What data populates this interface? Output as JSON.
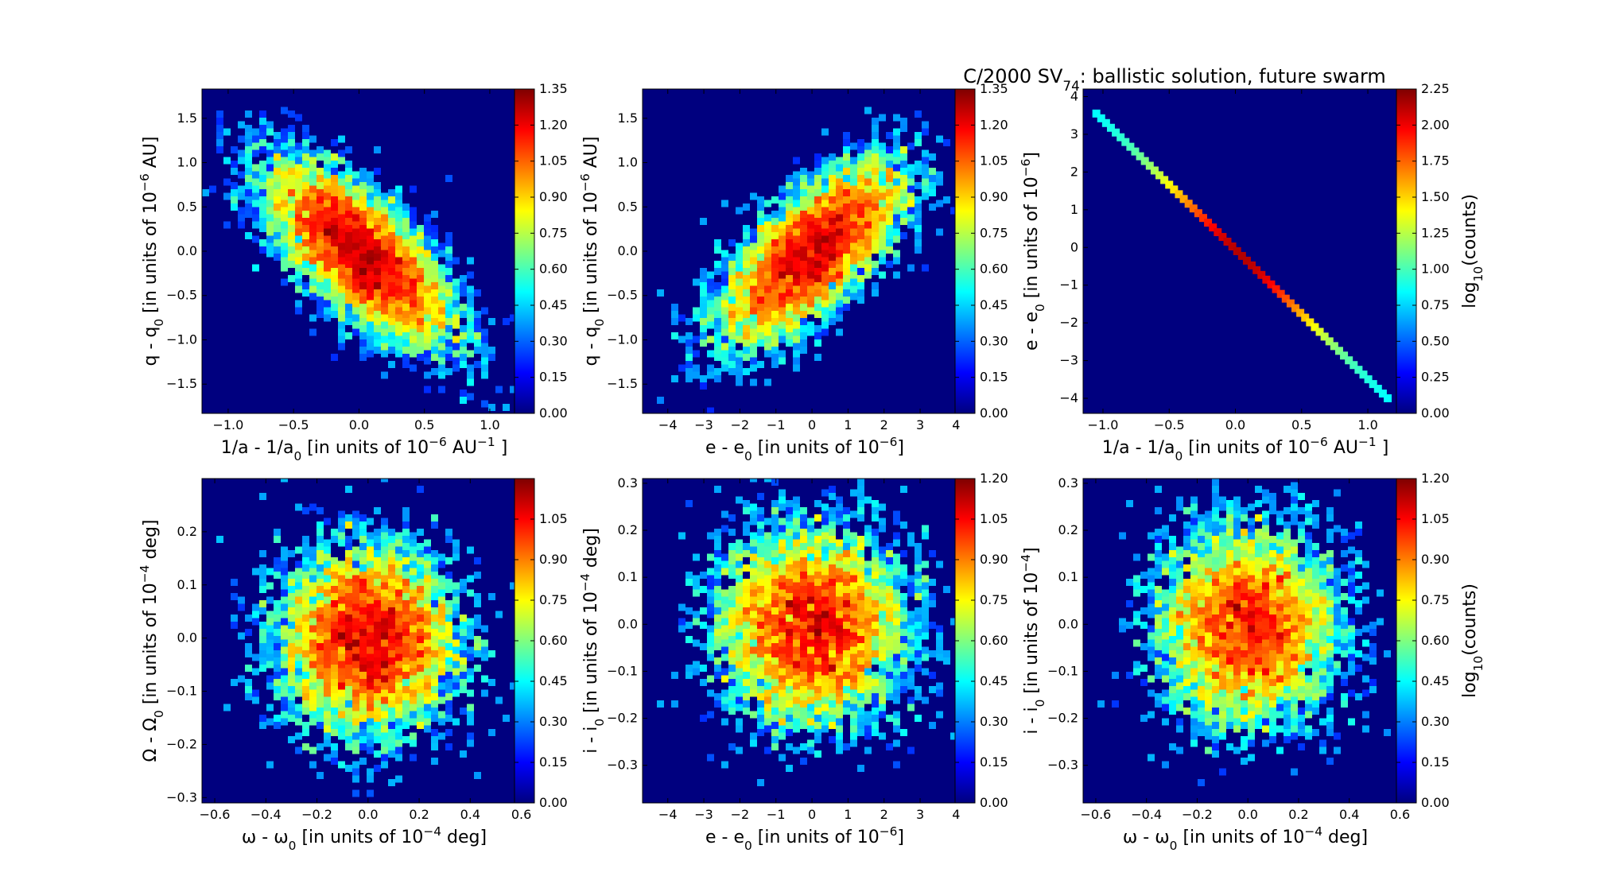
{
  "figure": {
    "title": "C/2000 SV",
    "title_sub": "74",
    "title_rest": ":  ballistic solution, future swarm"
  },
  "colormap": [
    "#00007f",
    "#0000ff",
    "#007fff",
    "#00ffff",
    "#7fff7f",
    "#ffff00",
    "#ff7f00",
    "#ff0000",
    "#7f0000"
  ],
  "chart_data": [
    {
      "type": "heatmap",
      "id": "p1",
      "kind": "ellipse",
      "xlim": [
        -1.2,
        1.28
      ],
      "ylim": [
        -1.83,
        1.83
      ],
      "xticks": [
        -1.0,
        -0.5,
        0.0,
        0.5,
        1.0
      ],
      "yticks": [
        -1.5,
        -1.0,
        -0.5,
        0.0,
        0.5,
        1.0,
        1.5
      ],
      "xlabel": [
        {
          "t": "1/a - 1/a"
        },
        {
          "t": "0",
          "s": "sub"
        },
        {
          "t": " [in units of 10"
        },
        {
          "t": "−6",
          "s": "sup"
        },
        {
          "t": " AU"
        },
        {
          "t": "−1",
          "s": "sup"
        },
        {
          "t": " ]"
        }
      ],
      "ylabel": [
        {
          "t": "q - q"
        },
        {
          "t": "0",
          "s": "sub"
        },
        {
          "t": " [in units of 10"
        },
        {
          "t": "−6",
          "s": "sup"
        },
        {
          "t": " AU]"
        }
      ],
      "sx": 0.35,
      "sy": 0.5,
      "rho": -0.7,
      "colorbar": {
        "range": [
          0,
          1.35
        ],
        "ticks": [
          "0.00",
          "0.15",
          "0.30",
          "0.45",
          "0.60",
          "0.75",
          "0.90",
          "1.05",
          "1.20",
          "1.35"
        ],
        "label": []
      }
    },
    {
      "type": "heatmap",
      "id": "p2",
      "kind": "ellipse",
      "xlim": [
        -4.7,
        4.3
      ],
      "ylim": [
        -1.83,
        1.83
      ],
      "xticks": [
        -4,
        -3,
        -2,
        -1,
        0,
        1,
        2,
        3,
        4
      ],
      "yticks": [
        -1.5,
        -1.0,
        -0.5,
        0.0,
        0.5,
        1.0,
        1.5
      ],
      "xlabel": [
        {
          "t": "e - e"
        },
        {
          "t": "0",
          "s": "sub"
        },
        {
          "t": " [in units of 10"
        },
        {
          "t": "−6",
          "s": "sup"
        },
        {
          "t": "]"
        }
      ],
      "ylabel": [
        {
          "t": "q - q"
        },
        {
          "t": "0",
          "s": "sub"
        },
        {
          "t": " [in units of 10"
        },
        {
          "t": "−6",
          "s": "sup"
        },
        {
          "t": " AU]"
        }
      ],
      "sx": 1.25,
      "sy": 0.5,
      "rho": 0.7,
      "colorbar": {
        "range": [
          0,
          1.35
        ],
        "ticks": [
          "0.00",
          "0.15",
          "0.30",
          "0.45",
          "0.60",
          "0.75",
          "0.90",
          "1.05",
          "1.20",
          "1.35"
        ],
        "label": []
      }
    },
    {
      "type": "heatmap",
      "id": "p3",
      "kind": "line",
      "xlim": [
        -1.15,
        1.3
      ],
      "ylim": [
        -4.4,
        4.2
      ],
      "xticks": [
        -1.0,
        -0.5,
        0.0,
        0.5,
        1.0
      ],
      "yticks": [
        -4,
        -3,
        -2,
        -1,
        0,
        1,
        2,
        3,
        4
      ],
      "xlabel": [
        {
          "t": "1/a - 1/a"
        },
        {
          "t": "0",
          "s": "sub"
        },
        {
          "t": " [in units of 10"
        },
        {
          "t": "−6",
          "s": "sup"
        },
        {
          "t": " AU"
        },
        {
          "t": "−1",
          "s": "sup"
        },
        {
          "t": " ]"
        }
      ],
      "ylabel": [
        {
          "t": "e - e"
        },
        {
          "t": "0",
          "s": "sub"
        },
        {
          "t": " [in units of 10"
        },
        {
          "t": "−6",
          "s": "sup"
        },
        {
          "t": "]"
        }
      ],
      "line": {
        "x0": -1.05,
        "y0": 3.55,
        "x1": 1.15,
        "y1": -4.0
      },
      "colorbar": {
        "range": [
          0,
          2.25
        ],
        "ticks": [
          "0.00",
          "0.25",
          "0.50",
          "0.75",
          "1.00",
          "1.25",
          "1.50",
          "1.75",
          "2.00",
          "2.25"
        ],
        "label": [
          {
            "t": "log"
          },
          {
            "t": "10",
            "s": "sub"
          },
          {
            "t": "(counts)"
          }
        ]
      }
    },
    {
      "type": "heatmap",
      "id": "p4",
      "kind": "ellipse",
      "xlim": [
        -0.65,
        0.62
      ],
      "ylim": [
        -0.31,
        0.3
      ],
      "xticks": [
        -0.6,
        -0.4,
        -0.2,
        0.0,
        0.2,
        0.4,
        0.6
      ],
      "yticks": [
        -0.3,
        -0.2,
        -0.1,
        0.0,
        0.1,
        0.2
      ],
      "xlabel": [
        {
          "t": "ω - ω"
        },
        {
          "t": "0",
          "s": "sub"
        },
        {
          "t": " [in units of 10"
        },
        {
          "t": "−4",
          "s": "sup"
        },
        {
          "t": " deg]"
        }
      ],
      "ylabel": [
        {
          "t": "Ω - Ω"
        },
        {
          "t": "0",
          "s": "sub"
        },
        {
          "t": " [in units of 10"
        },
        {
          "t": "−4",
          "s": "sup"
        },
        {
          "t": " deg]"
        }
      ],
      "sx": 0.17,
      "sy": 0.085,
      "rho": 0.0,
      "colorbar": {
        "range": [
          0,
          1.2
        ],
        "ticks": [
          "0.00",
          "0.15",
          "0.30",
          "0.45",
          "0.60",
          "0.75",
          "0.90",
          "1.05"
        ],
        "label": []
      }
    },
    {
      "type": "heatmap",
      "id": "p5",
      "kind": "ellipse",
      "xlim": [
        -4.7,
        4.3
      ],
      "ylim": [
        -0.38,
        0.31
      ],
      "xticks": [
        -4,
        -3,
        -2,
        -1,
        0,
        1,
        2,
        3,
        4
      ],
      "yticks": [
        -0.3,
        -0.2,
        -0.1,
        0.0,
        0.1,
        0.2,
        0.3
      ],
      "xlabel": [
        {
          "t": "e - e"
        },
        {
          "t": "0",
          "s": "sub"
        },
        {
          "t": " [in units of 10"
        },
        {
          "t": "−6",
          "s": "sup"
        },
        {
          "t": "]"
        }
      ],
      "ylabel": [
        {
          "t": "i - i"
        },
        {
          "t": "0",
          "s": "sub"
        },
        {
          "t": " [in units of 10"
        },
        {
          "t": "−4",
          "s": "sup"
        },
        {
          "t": " deg]"
        }
      ],
      "sx": 1.25,
      "sy": 0.1,
      "rho": 0.0,
      "colorbar": {
        "range": [
          0,
          1.2
        ],
        "ticks": [
          "0.00",
          "0.15",
          "0.30",
          "0.45",
          "0.60",
          "0.75",
          "0.90",
          "1.05",
          "1.20"
        ],
        "label": []
      }
    },
    {
      "type": "heatmap",
      "id": "p6",
      "kind": "ellipse",
      "xlim": [
        -0.65,
        0.63
      ],
      "ylim": [
        -0.38,
        0.31
      ],
      "xticks": [
        -0.6,
        -0.4,
        -0.2,
        0.0,
        0.2,
        0.4,
        0.6
      ],
      "yticks": [
        -0.3,
        -0.2,
        -0.1,
        0.0,
        0.1,
        0.2,
        0.3
      ],
      "xlabel": [
        {
          "t": "ω - ω"
        },
        {
          "t": "0",
          "s": "sub"
        },
        {
          "t": " [in units of 10"
        },
        {
          "t": "−4",
          "s": "sup"
        },
        {
          "t": " deg]"
        }
      ],
      "ylabel": [
        {
          "t": "i - i"
        },
        {
          "t": "0",
          "s": "sub"
        },
        {
          "t": " [in units of 10"
        },
        {
          "t": "−4",
          "s": "sup"
        },
        {
          "t": "]"
        }
      ],
      "sx": 0.17,
      "sy": 0.1,
      "rho": 0.0,
      "colorbar": {
        "range": [
          0,
          1.2
        ],
        "ticks": [
          "0.00",
          "0.15",
          "0.30",
          "0.45",
          "0.60",
          "0.75",
          "0.90",
          "1.05",
          "1.20"
        ],
        "label": [
          {
            "t": "log"
          },
          {
            "t": "10",
            "s": "sub"
          },
          {
            "t": "(counts)"
          }
        ]
      }
    }
  ]
}
